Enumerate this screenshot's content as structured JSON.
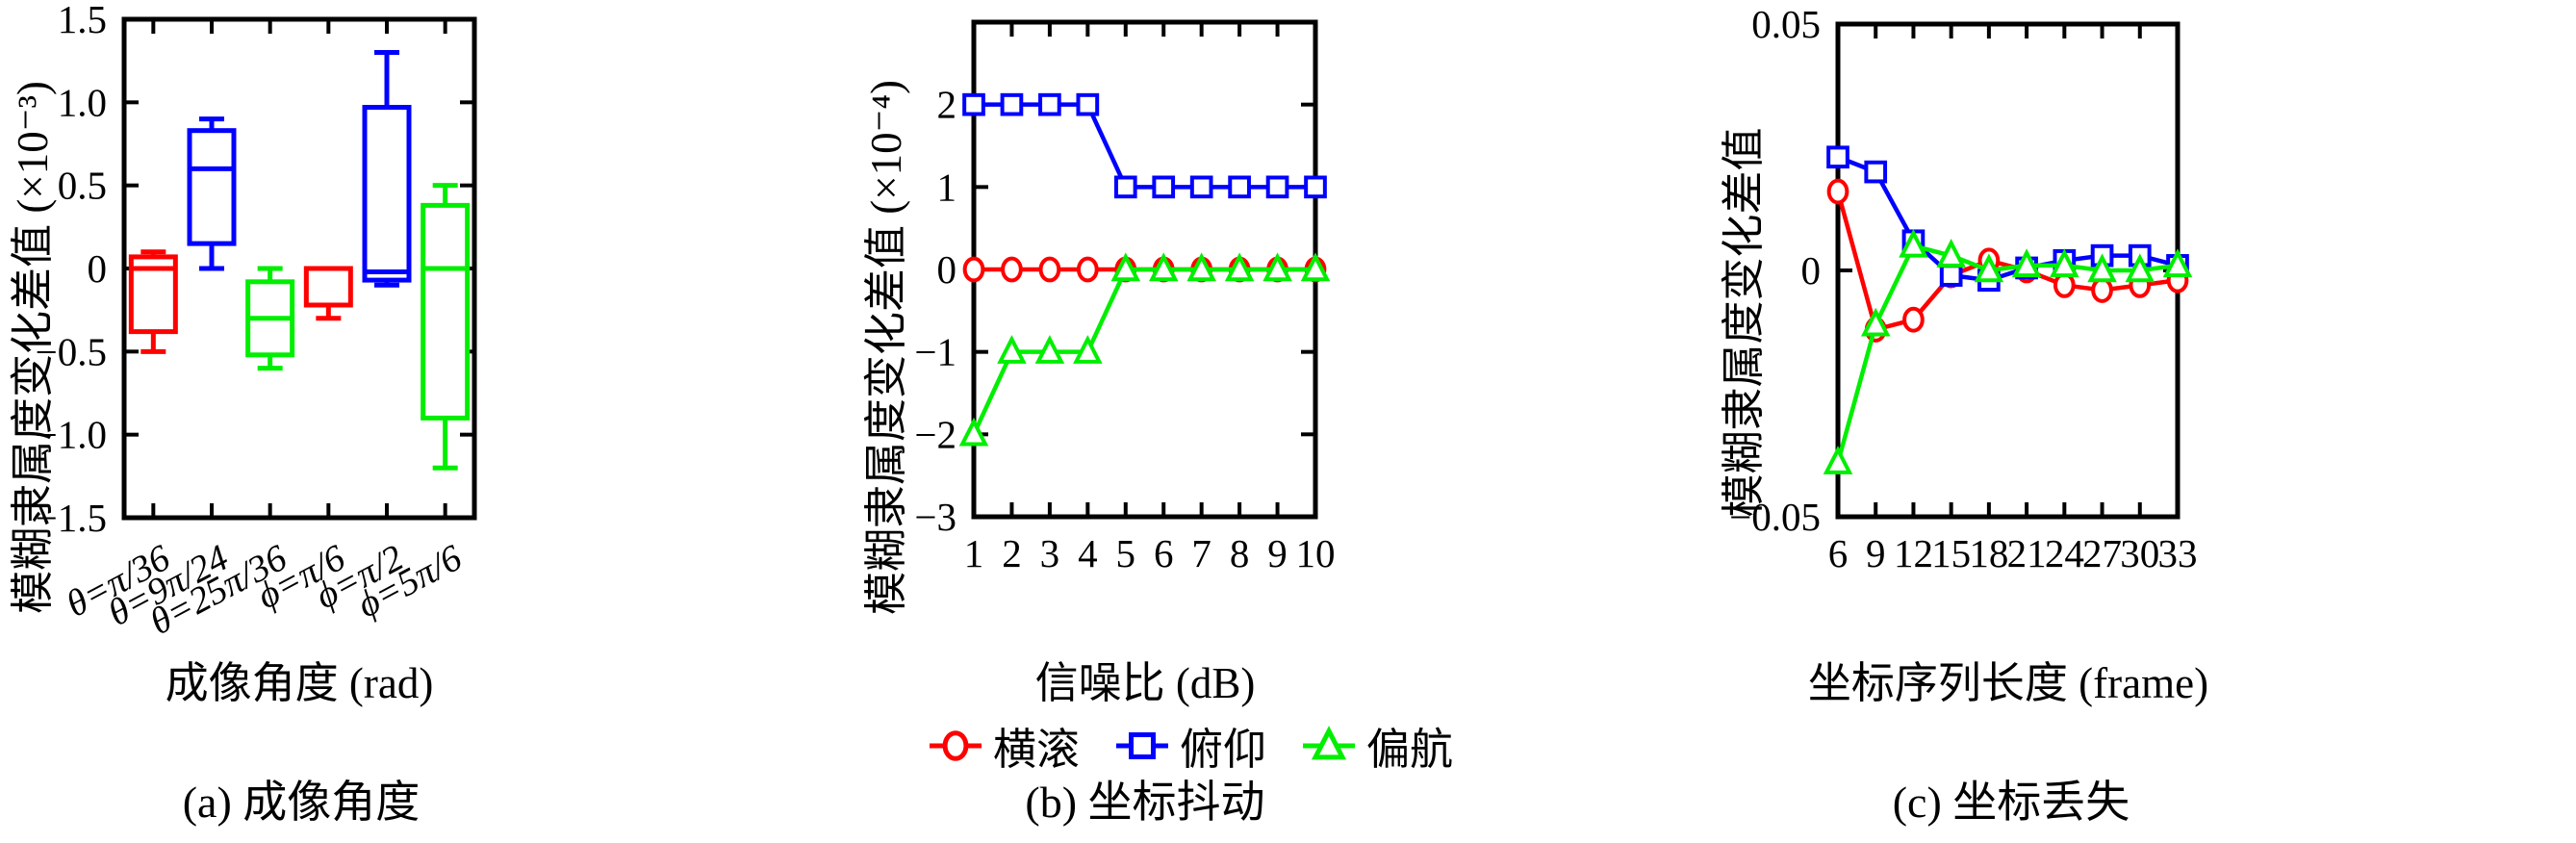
{
  "figure": {
    "legend": {
      "items": [
        {
          "label": "横滚",
          "marker": "circle",
          "color": "#ff0000"
        },
        {
          "label": "俯仰",
          "marker": "square",
          "color": "#0000ff"
        },
        {
          "label": "偏航",
          "marker": "triangle",
          "color": "#00ee00"
        }
      ]
    },
    "axis_color": "#000000",
    "background": "#ffffff"
  },
  "chart_data": [
    {
      "type": "boxplot",
      "panel": "a",
      "caption": "(a) 成像角度",
      "xlabel": "成像角度 (rad)",
      "ylabel": "模糊隶属度变化差值 (×10⁻³)",
      "ylim": [
        -1.5,
        1.5
      ],
      "yticks": [
        {
          "v": 1.5,
          "label": "1.5"
        },
        {
          "v": 1.0,
          "label": "1.0"
        },
        {
          "v": 0.5,
          "label": "0.5"
        },
        {
          "v": 0.0,
          "label": "0"
        },
        {
          "v": -0.5,
          "label": "−0.5"
        },
        {
          "v": -1.0,
          "label": "−1.0"
        },
        {
          "v": -1.5,
          "label": "−1.5"
        }
      ],
      "categories": [
        "θ=π/36",
        "θ=9π/24",
        "θ=25π/36",
        "ϕ=π/6",
        "ϕ=π/2",
        "ϕ=5π/6"
      ],
      "boxes": [
        {
          "category": "θ=π/36",
          "color": "#ff0000",
          "low": -0.5,
          "q1": -0.38,
          "median": 0.0,
          "q3": 0.07,
          "high": 0.1
        },
        {
          "category": "θ=9π/24",
          "color": "#0000ff",
          "low": 0.0,
          "q1": 0.15,
          "median": 0.6,
          "q3": 0.83,
          "high": 0.9
        },
        {
          "category": "θ=25π/36",
          "color": "#00ee00",
          "low": -0.6,
          "q1": -0.52,
          "median": -0.3,
          "q3": -0.08,
          "high": 0.0
        },
        {
          "category": "ϕ=π/6",
          "color": "#ff0000",
          "low": -0.3,
          "q1": -0.22,
          "median": 0.0,
          "q3": 0.0,
          "high": 0.0
        },
        {
          "category": "ϕ=π/2",
          "color": "#0000ff",
          "low": -0.1,
          "q1": -0.07,
          "median": -0.02,
          "q3": 0.97,
          "high": 1.3
        },
        {
          "category": "ϕ=5π/6",
          "color": "#00ee00",
          "low": -1.2,
          "q1": -0.9,
          "median": 0.0,
          "q3": 0.38,
          "high": 0.5
        }
      ]
    },
    {
      "type": "line",
      "panel": "b",
      "caption": "(b) 坐标抖动",
      "xlabel": "信噪比 (dB)",
      "ylabel": "模糊隶属度变化差值 (×10⁻⁴)",
      "ylim": [
        -3,
        3
      ],
      "yticks": [
        {
          "v": 2,
          "label": "2"
        },
        {
          "v": 1,
          "label": "1"
        },
        {
          "v": 0,
          "label": "0"
        },
        {
          "v": -1,
          "label": "−1"
        },
        {
          "v": -2,
          "label": "−2"
        },
        {
          "v": -3,
          "label": "−3"
        }
      ],
      "x": [
        1,
        2,
        3,
        4,
        5,
        6,
        7,
        8,
        9,
        10
      ],
      "xtick_labels": [
        "1",
        "2",
        "3",
        "4",
        "5",
        "6",
        "7",
        "8",
        "9",
        "10"
      ],
      "series": [
        {
          "name": "横滚",
          "color": "#ff0000",
          "marker": "circle",
          "values": [
            0,
            0,
            0,
            0,
            0,
            0,
            0,
            0,
            0,
            0
          ]
        },
        {
          "name": "俯仰",
          "color": "#0000ff",
          "marker": "square",
          "values": [
            2,
            2,
            2,
            2,
            1,
            1,
            1,
            1,
            1,
            1
          ]
        },
        {
          "name": "偏航",
          "color": "#00ee00",
          "marker": "triangle",
          "values": [
            -2,
            -1,
            -1,
            -1,
            0,
            0,
            0,
            0,
            0,
            0
          ]
        }
      ]
    },
    {
      "type": "line",
      "panel": "c",
      "caption": "(c) 坐标丢失",
      "xlabel": "坐标序列长度 (frame)",
      "ylabel": "模糊隶属度变化差值",
      "ylim": [
        -0.05,
        0.05
      ],
      "yticks": [
        {
          "v": 0.05,
          "label": "0.05"
        },
        {
          "v": 0.0,
          "label": "0"
        },
        {
          "v": -0.05,
          "label": "−0.05"
        }
      ],
      "x": [
        6,
        9,
        12,
        15,
        18,
        21,
        24,
        27,
        30,
        33
      ],
      "xtick_labels": [
        "6",
        "9",
        "12",
        "15",
        "18",
        "21",
        "24",
        "27",
        "30",
        "33"
      ],
      "series": [
        {
          "name": "横滚",
          "color": "#ff0000",
          "marker": "circle",
          "values": [
            0.016,
            -0.012,
            -0.01,
            -0.001,
            0.002,
            0.0,
            -0.003,
            -0.004,
            -0.003,
            -0.002
          ]
        },
        {
          "name": "俯仰",
          "color": "#0000ff",
          "marker": "square",
          "values": [
            0.023,
            0.02,
            0.006,
            -0.001,
            -0.002,
            0.0005,
            0.002,
            0.003,
            0.003,
            0.001
          ]
        },
        {
          "name": "偏航",
          "color": "#00ee00",
          "marker": "triangle",
          "values": [
            -0.039,
            -0.011,
            0.005,
            0.003,
            0.0,
            0.001,
            0.001,
            0.0,
            0.0,
            0.001
          ]
        }
      ]
    }
  ]
}
